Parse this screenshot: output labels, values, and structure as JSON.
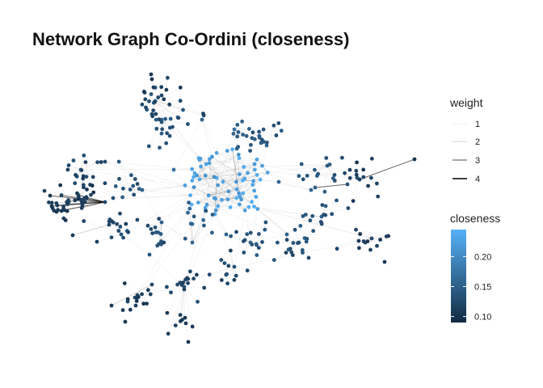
{
  "title": "Network Graph Co-Ordini (closeness)",
  "colors": {
    "closeness_low": "#132b43",
    "closeness_high": "#56b1f7",
    "edge": "#000000"
  },
  "legend": {
    "weight": {
      "title": "weight",
      "items": [
        {
          "label": "1",
          "value": 1
        },
        {
          "label": "2",
          "value": 2
        },
        {
          "label": "3",
          "value": 3
        },
        {
          "label": "4",
          "value": 4
        }
      ]
    },
    "closeness": {
      "title": "closeness",
      "min": 0.09,
      "max": 0.245,
      "ticks": [
        {
          "label": "0.20",
          "value": 0.2
        },
        {
          "label": "0.15",
          "value": 0.15
        },
        {
          "label": "0.10",
          "value": 0.1
        }
      ]
    }
  }
}
